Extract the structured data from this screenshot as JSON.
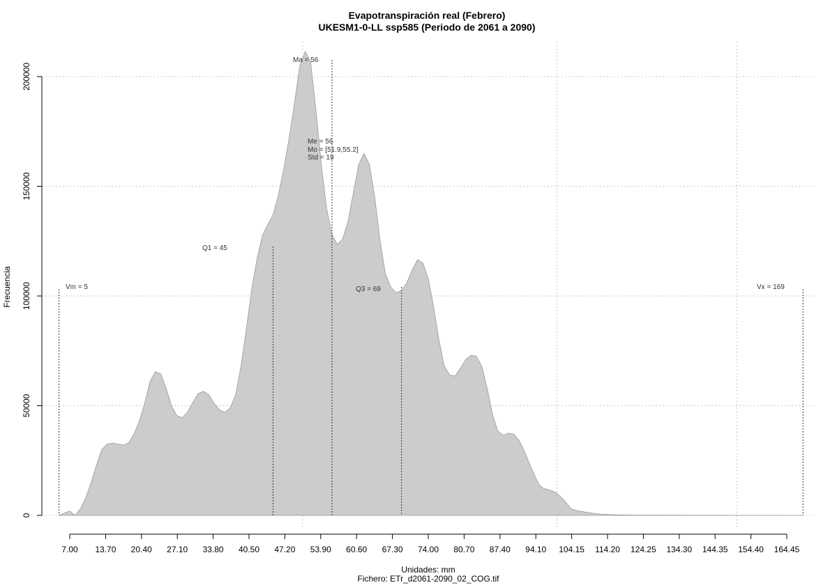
{
  "chart_data": {
    "type": "area",
    "title": "Evapotranspiración real (Febrero)",
    "subtitle": "UKESM1-0-LL ssp585 (Periodo de 2061 a 2090)",
    "xlabel": "Unidades: mm",
    "ylabel": "Frecuencia",
    "footer": "Fichero: ETr_d2061-2090_02_COG.tif",
    "x_ticks": [
      7.0,
      13.7,
      20.4,
      27.1,
      33.8,
      40.5,
      47.2,
      53.9,
      60.6,
      67.3,
      74.0,
      80.7,
      87.4,
      94.1,
      104.15,
      114.2,
      124.25,
      134.3,
      144.35,
      154.4,
      164.45
    ],
    "x_tick_labels": [
      "7.00",
      "13.70",
      "20.40",
      "27.10",
      "33.80",
      "40.50",
      "47.20",
      "53.90",
      "60.60",
      "67.30",
      "74.00",
      "80.70",
      "87.40",
      "94.10",
      "104.15",
      "114.20",
      "124.25",
      "134.30",
      "144.35",
      "154.40",
      "164.45"
    ],
    "y_ticks": [
      0,
      50000,
      100000,
      150000,
      200000
    ],
    "y_tick_labels": [
      "0",
      "50000",
      "100000",
      "150000",
      "200000"
    ],
    "xlim": [
      3,
      172
    ],
    "ylim": [
      -8000,
      215000
    ],
    "grid_x": [
      50.5,
      100,
      150.5
    ],
    "grid": true,
    "fill_color": "#cccccc",
    "line_color": "#999999",
    "x": [
      5,
      6,
      7,
      8,
      9,
      10,
      11,
      12,
      13,
      14,
      15,
      16,
      17,
      18,
      19,
      20,
      21,
      22,
      23,
      24,
      25,
      26,
      27,
      28,
      29,
      30,
      31,
      32,
      33,
      34,
      35,
      36,
      37,
      38,
      39,
      40,
      41,
      42,
      43,
      44,
      45,
      46,
      47,
      48,
      49,
      50,
      51,
      52,
      53,
      54,
      55,
      56,
      57,
      58,
      59,
      60,
      61,
      62,
      63,
      64,
      65,
      66,
      67,
      68,
      69,
      70,
      71,
      72,
      73,
      74,
      75,
      76,
      77,
      78,
      79,
      80,
      81,
      82,
      83,
      84,
      85,
      86,
      87,
      88,
      89,
      90,
      91,
      92,
      93,
      94,
      95,
      96,
      97,
      98,
      99,
      100,
      102,
      104,
      106,
      108,
      110,
      112,
      114,
      116,
      118,
      120,
      125,
      130,
      140,
      150,
      160,
      169
    ],
    "y": [
      0,
      1000,
      2000,
      0,
      3000,
      8000,
      15000,
      23000,
      30000,
      32500,
      33000,
      32500,
      32000,
      33000,
      37000,
      43000,
      51000,
      61000,
      65500,
      64500,
      58000,
      50000,
      45500,
      44500,
      47000,
      51500,
      55500,
      56500,
      55000,
      51000,
      48000,
      47000,
      49000,
      55000,
      68000,
      85000,
      103000,
      117000,
      127500,
      132500,
      137000,
      146000,
      158000,
      172000,
      188000,
      205000,
      211500,
      207000,
      185000,
      160000,
      140000,
      128000,
      123500,
      126000,
      134000,
      147000,
      160000,
      165000,
      160000,
      145000,
      125000,
      110000,
      104000,
      101500,
      102500,
      106000,
      112000,
      116500,
      115000,
      108000,
      95000,
      80000,
      68000,
      64000,
      63500,
      67000,
      71000,
      73000,
      72500,
      68000,
      58000,
      46000,
      38500,
      36500,
      37500,
      37000,
      34000,
      29000,
      23000,
      17500,
      14000,
      12500,
      12000,
      11500,
      11000,
      10000,
      7000,
      3000,
      2000,
      1500,
      1000,
      600,
      400,
      300,
      200,
      150,
      100,
      80,
      50,
      30,
      20,
      0
    ],
    "annotations": {
      "vm": {
        "x": 5,
        "label": "Vm = 5"
      },
      "q1": {
        "x": 45,
        "label": "Q1 = 45"
      },
      "ma": {
        "x": 56,
        "label": "Ma = 56"
      },
      "q3": {
        "x": 69,
        "label": "Q3 = 69"
      },
      "vx": {
        "x": 169,
        "label": "Vx = 169"
      },
      "me": "Me = 56",
      "mo": "Mo = [51.9,55.2]",
      "std": "Std = 19"
    }
  }
}
